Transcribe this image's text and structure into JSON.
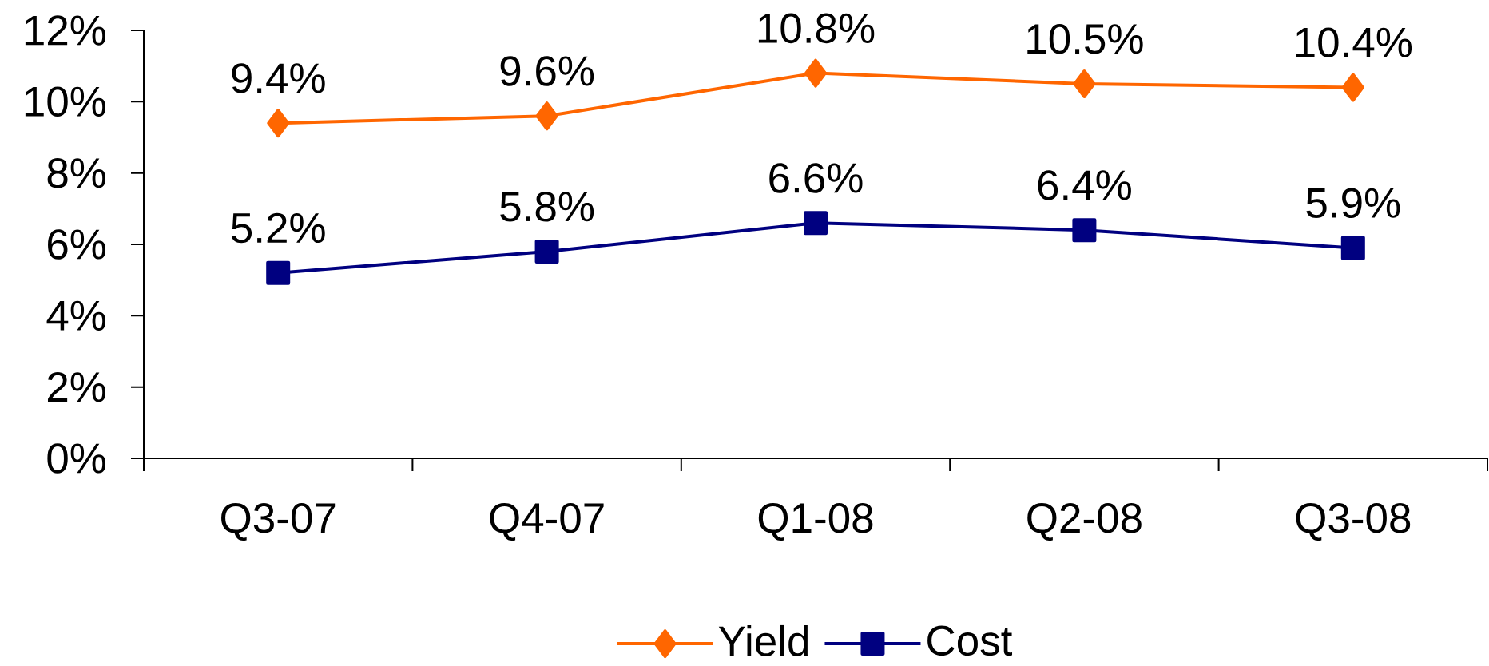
{
  "chart_data": {
    "type": "line",
    "categories": [
      "Q3-07",
      "Q4-07",
      "Q1-08",
      "Q2-08",
      "Q3-08"
    ],
    "series": [
      {
        "name": "Yield",
        "color": "#ff6600",
        "marker": "diamond",
        "values": [
          9.4,
          9.6,
          10.8,
          10.5,
          10.4
        ],
        "value_labels": [
          "9.4%",
          "9.6%",
          "10.8%",
          "10.5%",
          "10.4%"
        ]
      },
      {
        "name": "Cost",
        "color": "#000080",
        "marker": "square",
        "values": [
          5.2,
          5.8,
          6.6,
          6.4,
          5.9
        ],
        "value_labels": [
          "5.2%",
          "5.8%",
          "6.6%",
          "6.4%",
          "5.9%"
        ]
      }
    ],
    "ylim": [
      0,
      12
    ],
    "yticks": [
      {
        "value": 0,
        "label": "0%"
      },
      {
        "value": 2,
        "label": "2%"
      },
      {
        "value": 4,
        "label": "4%"
      },
      {
        "value": 6,
        "label": "6%"
      },
      {
        "value": 8,
        "label": "8%"
      },
      {
        "value": 10,
        "label": "10%"
      },
      {
        "value": 12,
        "label": "12%"
      }
    ],
    "legend": "bottom",
    "line_style": "solid"
  }
}
